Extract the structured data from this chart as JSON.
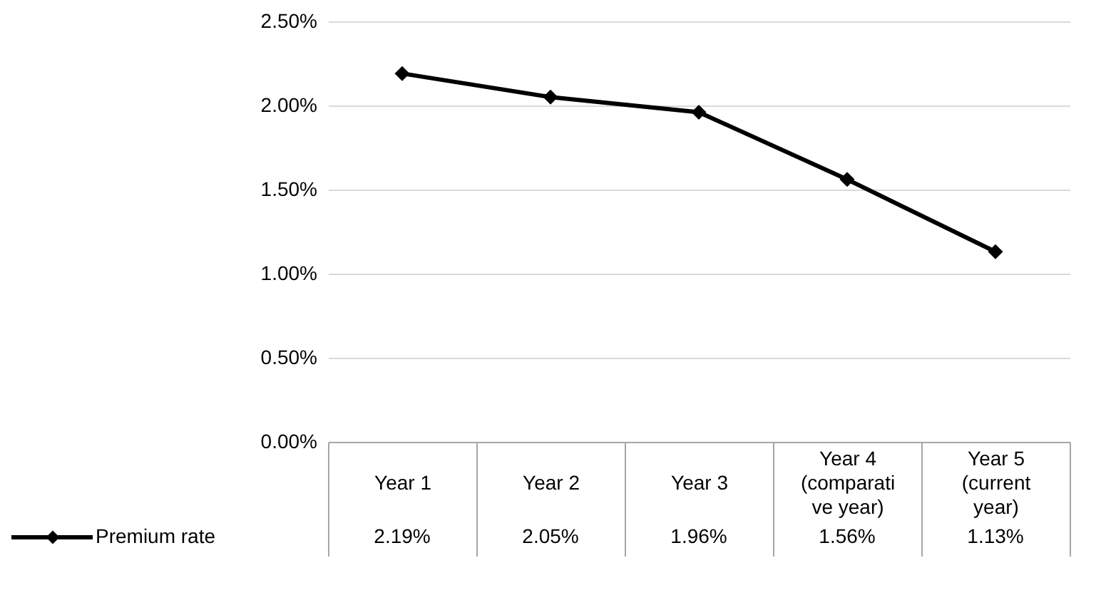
{
  "chart_data": {
    "type": "line",
    "categories": [
      "Year 1",
      "Year 2",
      "Year 3",
      "Year 4 (comparative year)",
      "Year 5 (current year)"
    ],
    "series": [
      {
        "name": "Premium rate",
        "color": "#000000",
        "values": [
          2.19,
          2.05,
          1.96,
          1.56,
          1.13
        ],
        "value_labels": [
          "2.19%",
          "2.05%",
          "1.96%",
          "1.56%",
          "1.13%"
        ]
      }
    ],
    "ylim": [
      0,
      2.5
    ],
    "yticks": [
      {
        "value": 0,
        "label": "0.00%"
      },
      {
        "value": 0.5,
        "label": "0.50%"
      },
      {
        "value": 1,
        "label": "1.00%"
      },
      {
        "value": 1.5,
        "label": "1.50%"
      },
      {
        "value": 2,
        "label": "2.00%"
      },
      {
        "value": 2.5,
        "label": "2.50%"
      }
    ],
    "grid": "y",
    "marker": "diamond",
    "line_style": "solid",
    "legend": "bottom left"
  }
}
